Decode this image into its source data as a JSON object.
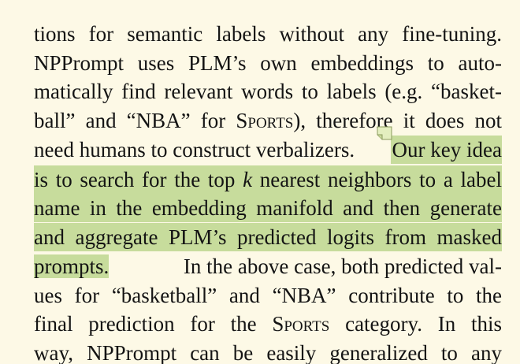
{
  "document": {
    "highlight_color": "#c7dc9c",
    "page_background": "#fdf9e6",
    "text_color": "#141414",
    "annotation_icon": "sticky-note-icon",
    "lines": [
      [
        {
          "t": "tions for semantic labels without any fine-tuning."
        }
      ],
      [
        {
          "t": "NPPrompt uses PLM’s own embeddings to auto-"
        }
      ],
      [
        {
          "t": "matically find relevant words to labels (e.g. “basket-"
        }
      ],
      [
        {
          "t": "ball” and “NBA” for "
        },
        {
          "t": "Sports",
          "sc": true
        },
        {
          "t": "), therefore it does not"
        }
      ],
      [
        {
          "t": "need humans to construct verbalizers. "
        },
        {
          "t": "Our key idea",
          "hl": true
        }
      ],
      [
        {
          "t": "is to search for the top ",
          "hl": true
        },
        {
          "t": "k",
          "hl": true,
          "i": true
        },
        {
          "t": " nearest neighbors to a label",
          "hl": true
        }
      ],
      [
        {
          "t": "name in the embedding manifold and then generate",
          "hl": true
        }
      ],
      [
        {
          "t": "and aggregate PLM’s predicted logits from masked",
          "hl": true
        }
      ],
      [
        {
          "t": "prompts.",
          "hl": true
        },
        {
          "t": "  In the above case, both predicted val-"
        }
      ],
      [
        {
          "t": "ues for “basketball” and “NBA” contribute to the"
        }
      ],
      [
        {
          "t": "final prediction for the "
        },
        {
          "t": "Sports",
          "sc": true
        },
        {
          "t": " category. In this"
        }
      ],
      [
        {
          "t": "way, NPPrompt can be easily generalized to any"
        }
      ]
    ]
  }
}
